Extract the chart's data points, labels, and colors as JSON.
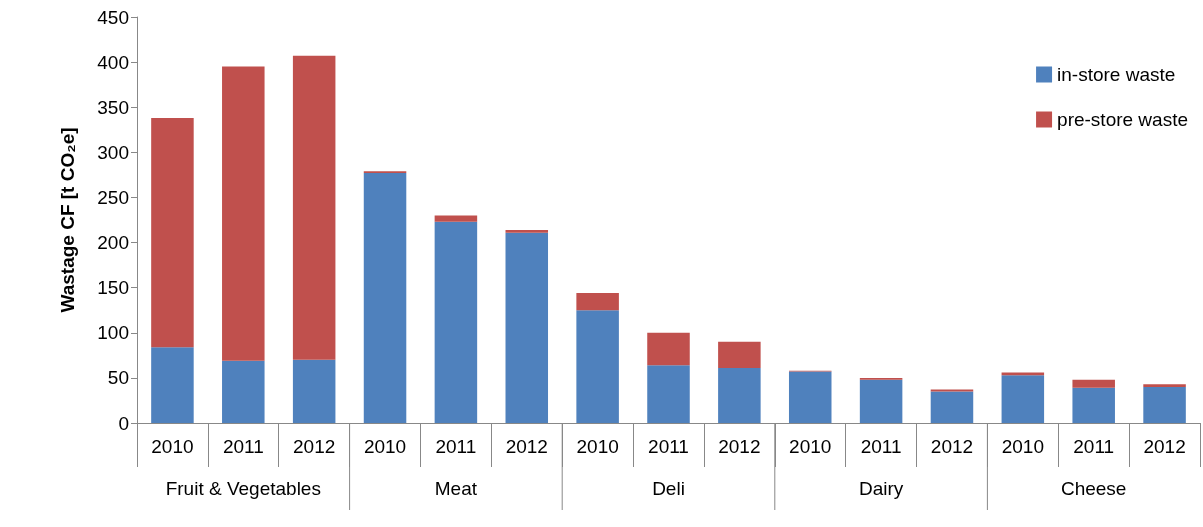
{
  "chart_data": {
    "type": "bar",
    "stacked": true,
    "ylabel": "Wastage CF [t CO₂e]",
    "categories": [
      "2010",
      "2011",
      "2012",
      "2010",
      "2011",
      "2012",
      "2010",
      "2011",
      "2012",
      "2010",
      "2011",
      "2012",
      "2010",
      "2011",
      "2012"
    ],
    "series": [
      {
        "name": "in-store waste",
        "color": "#4f81bd",
        "values": [
          84,
          69,
          70,
          277,
          223,
          211,
          125,
          64,
          61,
          57,
          48,
          35,
          53,
          39,
          40
        ]
      },
      {
        "name": "pre-store waste",
        "color": "#c0504d",
        "values": [
          254,
          326,
          337,
          2,
          7,
          3,
          19,
          36,
          29,
          1,
          2,
          2,
          3,
          9,
          3
        ]
      }
    ],
    "annotations": [
      "Fruit & Vegetables",
      "Meat",
      "Deli",
      "Dairy",
      "Cheese"
    ],
    "ylim": [
      0,
      450
    ],
    "yticks": [
      0,
      50,
      100,
      150,
      200,
      250,
      300,
      350,
      400,
      450
    ],
    "grid": false,
    "legend": "top right"
  }
}
